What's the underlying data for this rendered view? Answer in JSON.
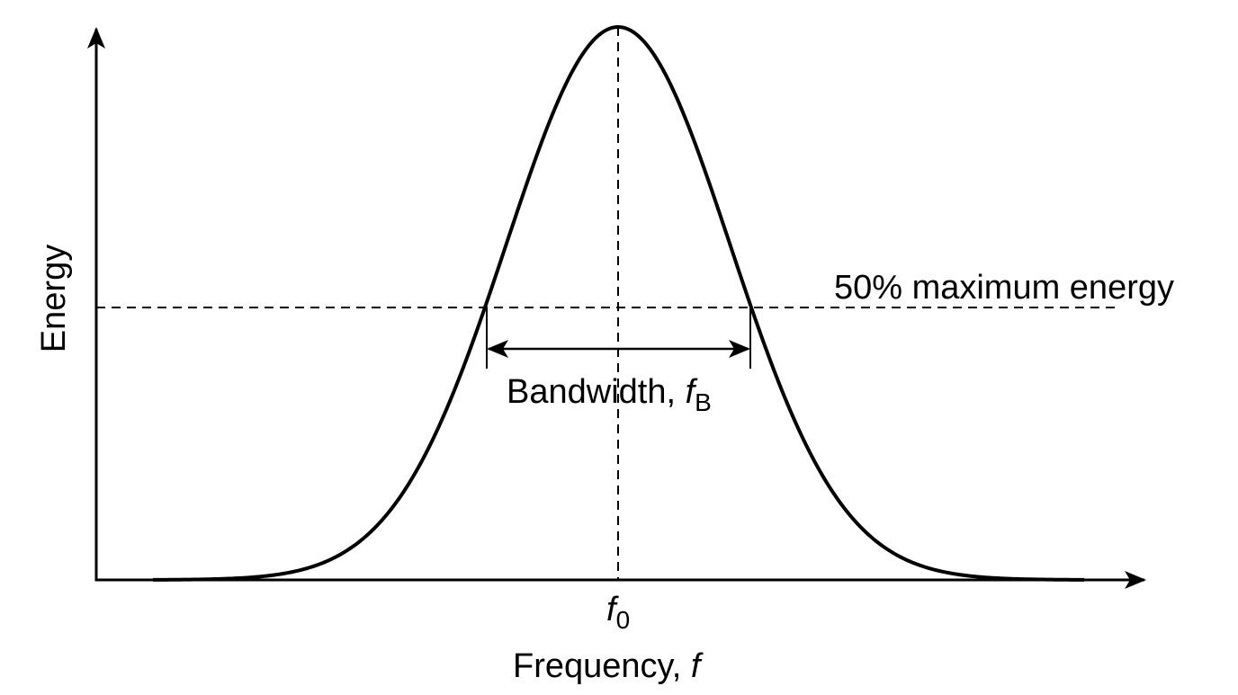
{
  "axes": {
    "y_label": "Energy",
    "x_label": {
      "text": "Frequency, ",
      "symbol": "f"
    }
  },
  "annotations": {
    "half_max": "50% maximum energy",
    "bandwidth": {
      "text": "Bandwidth, ",
      "symbol": "f",
      "subscript": "B"
    },
    "center": {
      "symbol": "f",
      "subscript": "0"
    }
  }
}
